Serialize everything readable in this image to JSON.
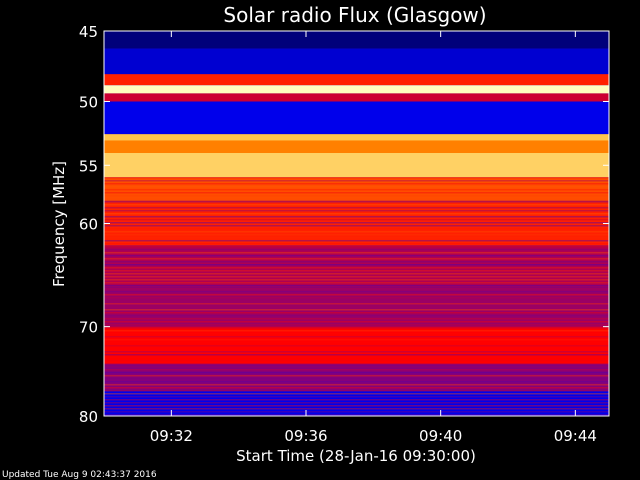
{
  "chart_data": {
    "type": "heatmap",
    "title": "Solar radio Flux (Glasgow)",
    "xlabel": "Start Time (28-Jan-16 09:30:00)",
    "ylabel": "Frequency [MHz]",
    "xlim": [
      "09:30:00",
      "09:45:00"
    ],
    "ylim": [
      45,
      80
    ],
    "y_ticks": [
      45,
      50,
      55,
      60,
      70,
      80
    ],
    "y_scale": "log",
    "x_ticks": [
      {
        "label": "09:32",
        "minutes": 2
      },
      {
        "label": "09:36",
        "minutes": 6
      },
      {
        "label": "09:40",
        "minutes": 10
      },
      {
        "label": "09:44",
        "minutes": 14
      }
    ],
    "colormap": [
      "#00005a",
      "#0000ff",
      "#ff0000",
      "#ffa000",
      "#ffffc0"
    ],
    "frequency_bands": [
      {
        "from": 45.0,
        "to": 46.2,
        "level": 0.05
      },
      {
        "from": 46.2,
        "to": 48.0,
        "level": 0.18
      },
      {
        "from": 48.0,
        "to": 48.8,
        "level": 0.55
      },
      {
        "from": 48.8,
        "to": 49.4,
        "level": 1.0
      },
      {
        "from": 49.4,
        "to": 50.0,
        "level": 0.45
      },
      {
        "from": 50.0,
        "to": 52.5,
        "level": 0.22
      },
      {
        "from": 52.5,
        "to": 53.0,
        "level": 0.85
      },
      {
        "from": 53.0,
        "to": 54.0,
        "level": 0.7
      },
      {
        "from": 54.0,
        "to": 56.0,
        "level": 0.88
      },
      {
        "from": 56.0,
        "to": 58.0,
        "level": 0.62
      },
      {
        "from": 58.0,
        "to": 62.0,
        "level": 0.55
      },
      {
        "from": 62.0,
        "to": 66.0,
        "level": 0.42
      },
      {
        "from": 66.0,
        "to": 70.0,
        "level": 0.4
      },
      {
        "from": 70.0,
        "to": 74.0,
        "level": 0.5
      },
      {
        "from": 74.0,
        "to": 77.0,
        "level": 0.38
      },
      {
        "from": 77.0,
        "to": 80.0,
        "level": 0.22
      }
    ]
  },
  "footer": "Updated Tue Aug  9 02:43:37 2016"
}
